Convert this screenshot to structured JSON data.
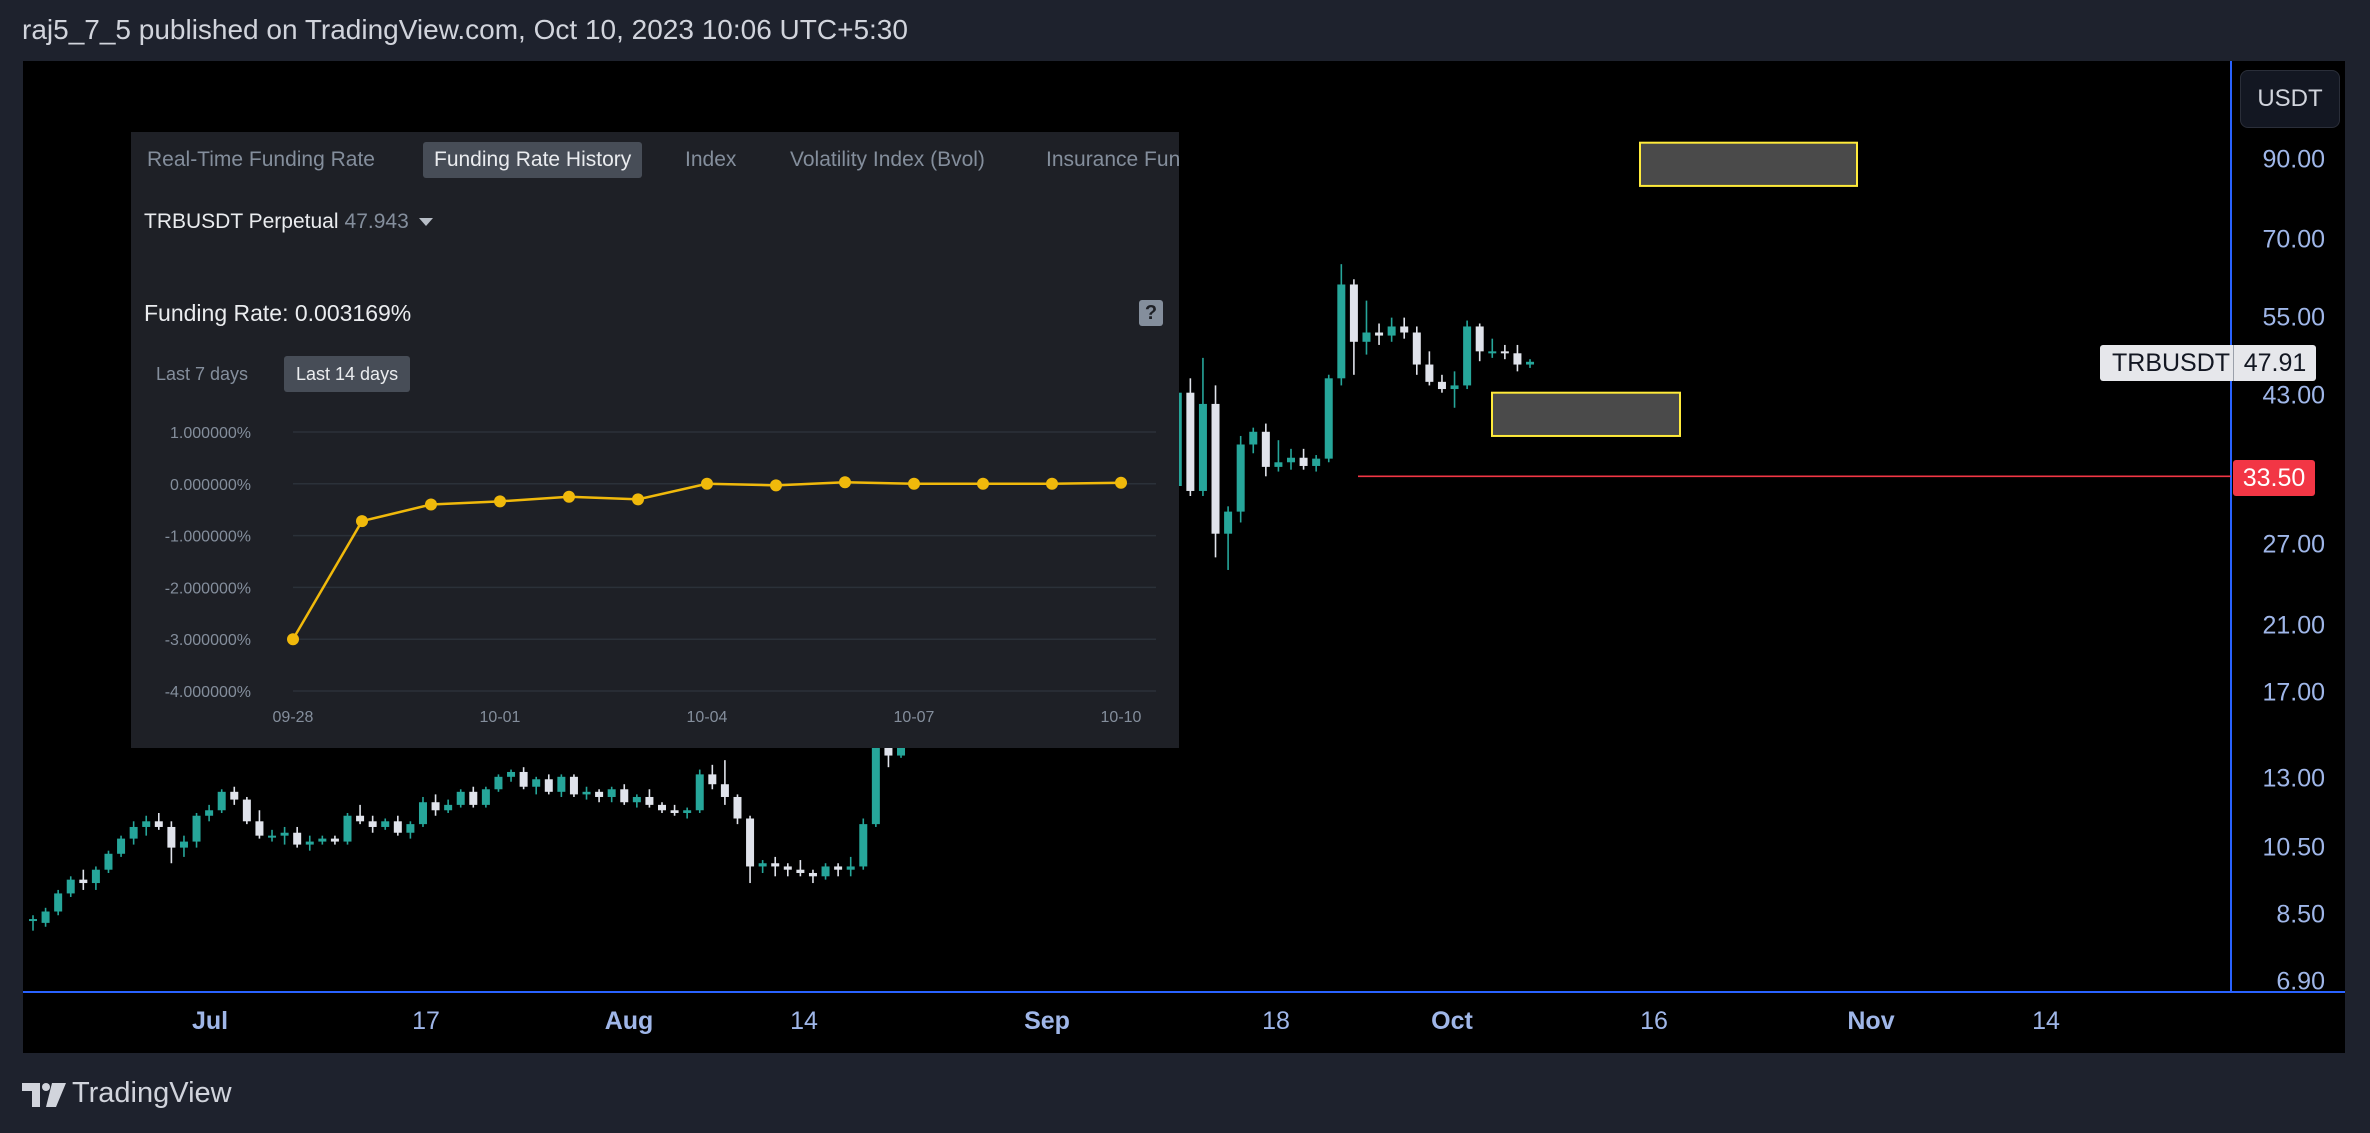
{
  "header": {
    "publish_line": "raj5_7_5 published on TradingView.com, Oct 10, 2023 10:06 UTC+5:30"
  },
  "footer": {
    "brand": "TradingView"
  },
  "colors": {
    "up": "#26a69a",
    "down": "#e0e3eb",
    "line": "#f0b90b",
    "level": "#f23645",
    "zone_border": "#ffeb3b",
    "axis_text": "#9fb6e8"
  },
  "price_scale": {
    "currency_button": "USDT",
    "labels": [
      "90.00",
      "70.00",
      "55.00",
      "43.00",
      "27.00",
      "21.00",
      "17.00",
      "13.00",
      "10.50",
      "8.50",
      "6.90"
    ],
    "last_price": {
      "symbol": "TRBUSDT",
      "value": "47.91"
    },
    "level_line": "33.50"
  },
  "time_axis": {
    "labels": [
      {
        "text": "Jul",
        "major": true
      },
      {
        "text": "17",
        "major": false
      },
      {
        "text": "Aug",
        "major": true
      },
      {
        "text": "14",
        "major": false
      },
      {
        "text": "Sep",
        "major": true
      },
      {
        "text": "18",
        "major": false
      },
      {
        "text": "Oct",
        "major": true
      },
      {
        "text": "16",
        "major": false
      },
      {
        "text": "Nov",
        "major": true
      },
      {
        "text": "14",
        "major": false
      }
    ]
  },
  "overlay": {
    "tabs": [
      {
        "label": "Real-Time Funding Rate",
        "active": false
      },
      {
        "label": "Funding Rate History",
        "active": true
      },
      {
        "label": "Index",
        "active": false
      },
      {
        "label": "Volatility Index (Bvol)",
        "active": false
      },
      {
        "label": "Insurance Fun",
        "active": false
      }
    ],
    "symbol": "TRBUSDT Perpetual",
    "symbol_price": "47.943",
    "funding_rate_label": "Funding Rate: 0.003169%",
    "periods": [
      {
        "label": "Last 7 days",
        "active": false
      },
      {
        "label": "Last 14 days",
        "active": true
      }
    ]
  },
  "chart_data": [
    {
      "type": "candlestick",
      "symbol": "TRBUSDT",
      "scale": "log",
      "ylim": [
        6.9,
        100
      ],
      "x_labels": [
        "Jul",
        "17",
        "Aug",
        "14",
        "Sep",
        "18",
        "Oct",
        "16",
        "Nov",
        "14"
      ],
      "candles": [
        [
          8.35,
          8.5,
          8.1,
          8.4
        ],
        [
          8.3,
          8.7,
          8.2,
          8.6
        ],
        [
          8.6,
          9.2,
          8.5,
          9.1
        ],
        [
          9.1,
          9.6,
          9.0,
          9.5
        ],
        [
          9.5,
          9.8,
          9.2,
          9.4
        ],
        [
          9.4,
          9.9,
          9.2,
          9.8
        ],
        [
          9.8,
          10.4,
          9.7,
          10.3
        ],
        [
          10.3,
          10.9,
          10.2,
          10.8
        ],
        [
          10.8,
          11.4,
          10.6,
          11.2
        ],
        [
          11.2,
          11.6,
          10.9,
          11.4
        ],
        [
          11.4,
          11.7,
          11.1,
          11.2
        ],
        [
          11.2,
          11.4,
          10.0,
          10.5
        ],
        [
          10.5,
          10.9,
          10.2,
          10.7
        ],
        [
          10.7,
          11.7,
          10.5,
          11.6
        ],
        [
          11.6,
          12.0,
          11.4,
          11.8
        ],
        [
          11.8,
          12.6,
          11.7,
          12.5
        ],
        [
          12.5,
          12.7,
          12.0,
          12.2
        ],
        [
          12.2,
          12.3,
          11.3,
          11.4
        ],
        [
          11.4,
          11.8,
          10.8,
          10.9
        ],
        [
          10.9,
          11.1,
          10.7,
          10.9
        ],
        [
          10.9,
          11.2,
          10.6,
          11.0
        ],
        [
          11.0,
          11.2,
          10.5,
          10.6
        ],
        [
          10.6,
          10.9,
          10.4,
          10.7
        ],
        [
          10.7,
          10.9,
          10.6,
          10.8
        ],
        [
          10.8,
          10.9,
          10.6,
          10.7
        ],
        [
          10.7,
          11.7,
          10.6,
          11.6
        ],
        [
          11.6,
          12.0,
          11.3,
          11.4
        ],
        [
          11.4,
          11.6,
          11.0,
          11.2
        ],
        [
          11.2,
          11.5,
          11.1,
          11.4
        ],
        [
          11.4,
          11.6,
          10.9,
          11.0
        ],
        [
          11.0,
          11.4,
          10.8,
          11.3
        ],
        [
          11.3,
          12.3,
          11.2,
          12.1
        ],
        [
          12.1,
          12.4,
          11.6,
          11.8
        ],
        [
          11.8,
          12.2,
          11.7,
          12.0
        ],
        [
          12.0,
          12.6,
          11.9,
          12.5
        ],
        [
          12.5,
          12.7,
          11.9,
          12.0
        ],
        [
          12.0,
          12.7,
          11.9,
          12.6
        ],
        [
          12.6,
          13.2,
          12.5,
          13.1
        ],
        [
          13.1,
          13.4,
          12.9,
          13.3
        ],
        [
          13.3,
          13.5,
          12.6,
          12.7
        ],
        [
          12.7,
          13.1,
          12.4,
          13.0
        ],
        [
          13.0,
          13.2,
          12.4,
          12.5
        ],
        [
          12.5,
          13.2,
          12.3,
          13.1
        ],
        [
          13.1,
          13.2,
          12.3,
          12.4
        ],
        [
          12.4,
          12.7,
          12.2,
          12.5
        ],
        [
          12.5,
          12.6,
          12.1,
          12.3
        ],
        [
          12.3,
          12.7,
          12.1,
          12.6
        ],
        [
          12.6,
          12.8,
          12.0,
          12.1
        ],
        [
          12.1,
          12.4,
          11.9,
          12.3
        ],
        [
          12.3,
          12.6,
          11.9,
          12.0
        ],
        [
          12.0,
          12.1,
          11.7,
          11.8
        ],
        [
          11.8,
          12.0,
          11.6,
          11.7
        ],
        [
          11.7,
          11.9,
          11.5,
          11.8
        ],
        [
          11.8,
          13.4,
          11.7,
          13.2
        ],
        [
          13.2,
          13.6,
          12.6,
          12.8
        ],
        [
          12.8,
          13.8,
          12.0,
          12.3
        ],
        [
          12.3,
          12.4,
          11.3,
          11.5
        ],
        [
          11.5,
          11.6,
          9.4,
          9.9
        ],
        [
          9.9,
          10.1,
          9.7,
          10.0
        ],
        [
          10.0,
          10.2,
          9.6,
          9.9
        ],
        [
          9.9,
          10.0,
          9.6,
          9.8
        ],
        [
          9.8,
          10.1,
          9.6,
          9.7
        ],
        [
          9.7,
          9.8,
          9.4,
          9.6
        ],
        [
          9.6,
          10.0,
          9.5,
          9.9
        ],
        [
          9.9,
          10.0,
          9.6,
          9.8
        ],
        [
          9.8,
          10.2,
          9.6,
          9.9
        ],
        [
          9.9,
          11.5,
          9.8,
          11.3
        ],
        [
          11.3,
          16.0,
          11.2,
          15.5
        ],
        [
          15.5,
          16.0,
          13.5,
          14.0
        ],
        [
          14.0,
          16.8,
          13.9,
          16.2
        ],
        [
          16.2,
          16.5,
          15.5,
          15.7
        ],
        [
          15.7,
          16.3,
          15.3,
          16.1
        ],
        [
          16.1,
          16.4,
          15.5,
          15.7
        ],
        [
          15.7,
          16.2,
          15.5,
          16.0
        ],
        [
          16.0,
          20.0,
          15.8,
          16.2
        ],
        [
          16.2,
          16.7,
          15.0,
          15.4
        ],
        [
          15.4,
          16.6,
          15.2,
          16.5
        ],
        [
          16.5,
          17.0,
          15.8,
          16.4
        ],
        [
          16.4,
          18.5,
          16.2,
          17.0
        ],
        [
          17.0,
          17.6,
          16.5,
          16.9
        ],
        [
          16.6,
          24.0,
          16.4,
          23.6
        ],
        [
          23.6,
          28.5,
          20.2,
          21.5
        ],
        [
          21.5,
          24.0,
          20.5,
          22.0
        ],
        [
          22.0,
          24.0,
          21.0,
          22.5
        ],
        [
          22.5,
          24.5,
          22.0,
          23.8
        ],
        [
          23.8,
          24.2,
          22.8,
          23.2
        ],
        [
          23.2,
          26.0,
          22.9,
          25.5
        ],
        [
          25.5,
          27.5,
          25.0,
          27.0
        ],
        [
          27.0,
          29.5,
          26.5,
          29.0
        ],
        [
          29.0,
          31.0,
          28.5,
          30.5
        ],
        [
          30.5,
          33.0,
          30.0,
          32.5
        ],
        [
          32.5,
          44.5,
          32.0,
          43.5
        ],
        [
          43.5,
          45.5,
          31.5,
          32.0
        ],
        [
          32.0,
          48.5,
          31.5,
          42.0
        ],
        [
          42.0,
          44.5,
          26.0,
          28.0
        ],
        [
          28.0,
          30.5,
          25.0,
          30.0
        ],
        [
          30.0,
          38.0,
          29.0,
          37.0
        ],
        [
          37.0,
          39.0,
          36.0,
          38.5
        ],
        [
          38.5,
          39.5,
          33.5,
          34.5
        ],
        [
          34.5,
          37.5,
          34.0,
          35.0
        ],
        [
          35.0,
          36.5,
          34.2,
          35.5
        ],
        [
          35.5,
          36.5,
          34.2,
          34.6
        ],
        [
          34.6,
          35.8,
          34.0,
          35.4
        ],
        [
          35.4,
          46.0,
          35.0,
          45.5
        ],
        [
          45.5,
          65.0,
          44.5,
          61.0
        ],
        [
          61.0,
          62.0,
          46.0,
          51.0
        ],
        [
          51.0,
          58.0,
          49.0,
          52.5
        ],
        [
          52.5,
          54.0,
          50.5,
          52.0
        ],
        [
          52.0,
          55.0,
          51.0,
          53.5
        ],
        [
          53.5,
          55.0,
          51.5,
          52.5
        ],
        [
          52.5,
          53.5,
          46.0,
          47.5
        ],
        [
          47.5,
          49.5,
          44.5,
          45.0
        ],
        [
          45.0,
          46.0,
          43.5,
          44.0
        ],
        [
          44.0,
          46.5,
          41.5,
          44.5
        ],
        [
          44.5,
          54.5,
          44.0,
          53.5
        ],
        [
          53.5,
          54.0,
          48.0,
          49.5
        ],
        [
          49.5,
          51.5,
          48.5,
          49.5
        ],
        [
          49.5,
          50.5,
          48.3,
          49.2
        ],
        [
          49.2,
          50.5,
          46.5,
          47.5
        ],
        [
          47.5,
          48.3,
          47.0,
          47.91
        ]
      ],
      "horizontal_line": 33.5,
      "zones": [
        {
          "price_top": 95,
          "price_bottom": 83
        },
        {
          "price_top": 43.5,
          "price_bottom": 38
        }
      ]
    },
    {
      "type": "line",
      "title": "Funding Rate History",
      "x_ticks": [
        "09-28",
        "10-01",
        "10-04",
        "10-07",
        "10-10"
      ],
      "y_ticks": [
        "1.000000%",
        "0.000000%",
        "-1.000000%",
        "-2.000000%",
        "-3.000000%",
        "-4.000000%"
      ],
      "ylim": [
        -4,
        1
      ],
      "x": [
        0,
        1,
        2,
        3,
        4,
        5,
        6,
        7,
        8,
        9,
        10,
        11,
        12
      ],
      "values": [
        -3.0,
        -0.72,
        -0.4,
        -0.34,
        -0.25,
        -0.3,
        0.0,
        -0.03,
        0.03,
        0.0,
        0.0,
        0.0,
        0.02
      ]
    }
  ]
}
